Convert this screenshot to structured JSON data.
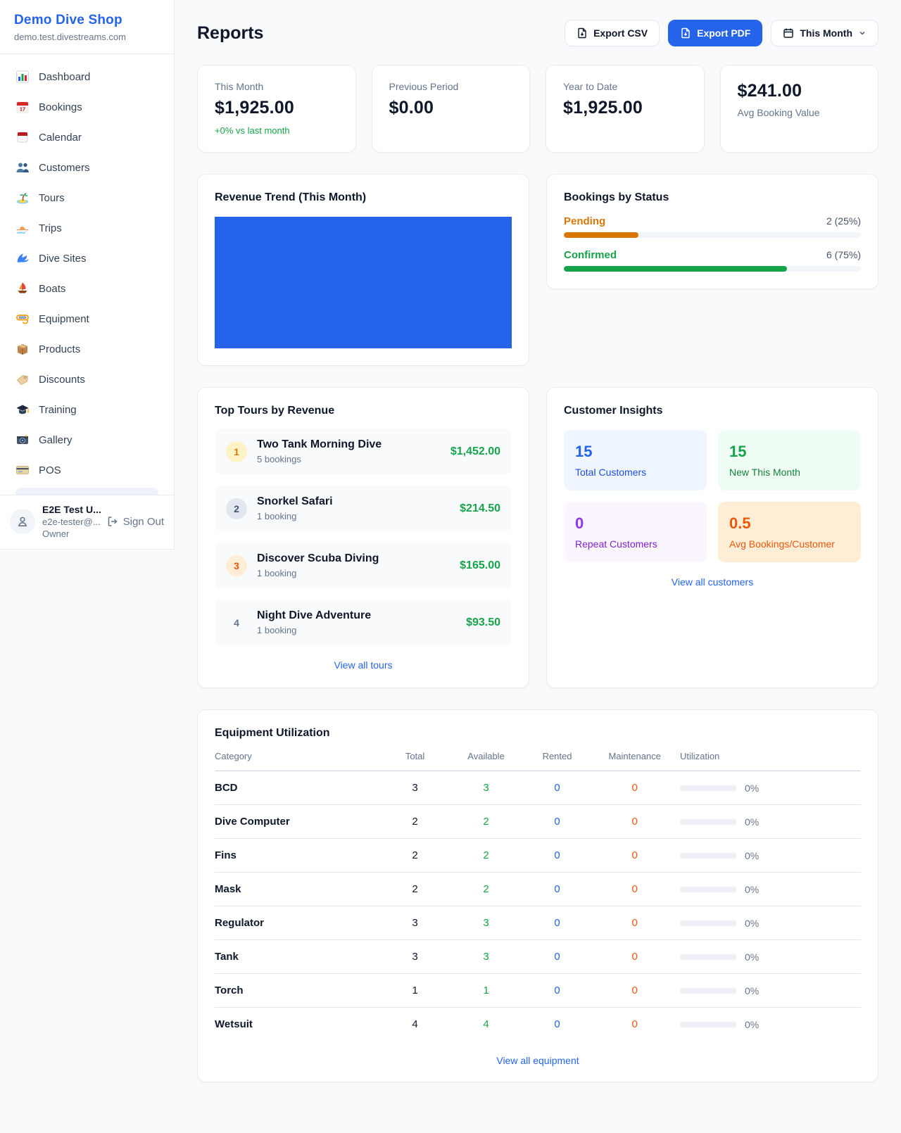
{
  "brand": {
    "name": "Demo Dive Shop",
    "domain": "demo.test.divestreams.com"
  },
  "nav": {
    "items": [
      {
        "label": "Dashboard"
      },
      {
        "label": "Bookings"
      },
      {
        "label": "Calendar"
      },
      {
        "label": "Customers"
      },
      {
        "label": "Tours"
      },
      {
        "label": "Trips"
      },
      {
        "label": "Dive Sites"
      },
      {
        "label": "Boats"
      },
      {
        "label": "Equipment"
      },
      {
        "label": "Products"
      },
      {
        "label": "Discounts"
      },
      {
        "label": "Training"
      },
      {
        "label": "Gallery"
      },
      {
        "label": "POS"
      }
    ]
  },
  "user": {
    "name": "E2E Test U...",
    "email": "e2e-tester@...",
    "role": "Owner",
    "sign_out": "Sign Out"
  },
  "header": {
    "title": "Reports",
    "export_csv": "Export CSV",
    "export_pdf": "Export PDF",
    "period": "This Month"
  },
  "stats": {
    "cards": [
      {
        "label": "This Month",
        "value": "$1,925.00",
        "delta": "+0% vs last month"
      },
      {
        "label": "Previous Period",
        "value": "$0.00"
      },
      {
        "label": "Year to Date",
        "value": "$1,925.00"
      },
      {
        "label": "Avg Booking Value",
        "value": "$241.00"
      }
    ]
  },
  "revenue_trend": {
    "title": "Revenue Trend (This Month)"
  },
  "bookings_status": {
    "title": "Bookings by Status",
    "rows": [
      {
        "label": "Pending",
        "value": "2 (25%)",
        "pct": 25
      },
      {
        "label": "Confirmed",
        "value": "6 (75%)",
        "pct": 75
      }
    ]
  },
  "chart_data": [
    {
      "type": "bar",
      "title": "Revenue Trend (This Month)",
      "categories": [
        "This Month"
      ],
      "values": [
        1925.0
      ],
      "color": "#2563eb",
      "note": "single solid blue bar filling the entire plot area, no axes or labels visible"
    },
    {
      "type": "bar",
      "title": "Bookings by Status",
      "categories": [
        "Pending",
        "Confirmed"
      ],
      "values": [
        2,
        6
      ],
      "percents": [
        25,
        75
      ],
      "colors": [
        "#d97706",
        "#16a34a"
      ],
      "layout": "horizontal progress bars"
    }
  ],
  "top_tours": {
    "title": "Top Tours by Revenue",
    "rows": [
      {
        "rank": "1",
        "name": "Two Tank Morning Dive",
        "bookings": "5 bookings",
        "amount": "$1,452.00"
      },
      {
        "rank": "2",
        "name": "Snorkel Safari",
        "bookings": "1 booking",
        "amount": "$214.50"
      },
      {
        "rank": "3",
        "name": "Discover Scuba Diving",
        "bookings": "1 booking",
        "amount": "$165.00"
      },
      {
        "rank": "4",
        "name": "Night Dive Adventure",
        "bookings": "1 booking",
        "amount": "$93.50"
      }
    ],
    "link": "View all tours"
  },
  "customer_insights": {
    "title": "Customer Insights",
    "tiles": [
      {
        "value": "15",
        "label": "Total Customers"
      },
      {
        "value": "15",
        "label": "New This Month"
      },
      {
        "value": "0",
        "label": "Repeat Customers"
      },
      {
        "value": "0.5",
        "label": "Avg Bookings/Customer"
      }
    ],
    "link": "View all customers"
  },
  "equipment": {
    "title": "Equipment Utilization",
    "columns": [
      "Category",
      "Total",
      "Available",
      "Rented",
      "Maintenance",
      "Utilization"
    ],
    "rows": [
      {
        "category": "BCD",
        "total": "3",
        "available": "3",
        "rented": "0",
        "maintenance": "0",
        "utilization": "0%",
        "pct": 0
      },
      {
        "category": "Dive Computer",
        "total": "2",
        "available": "2",
        "rented": "0",
        "maintenance": "0",
        "utilization": "0%",
        "pct": 0
      },
      {
        "category": "Fins",
        "total": "2",
        "available": "2",
        "rented": "0",
        "maintenance": "0",
        "utilization": "0%",
        "pct": 0
      },
      {
        "category": "Mask",
        "total": "2",
        "available": "2",
        "rented": "0",
        "maintenance": "0",
        "utilization": "0%",
        "pct": 0
      },
      {
        "category": "Regulator",
        "total": "3",
        "available": "3",
        "rented": "0",
        "maintenance": "0",
        "utilization": "0%",
        "pct": 0
      },
      {
        "category": "Tank",
        "total": "3",
        "available": "3",
        "rented": "0",
        "maintenance": "0",
        "utilization": "0%",
        "pct": 0
      },
      {
        "category": "Torch",
        "total": "1",
        "available": "1",
        "rented": "0",
        "maintenance": "0",
        "utilization": "0%",
        "pct": 0
      },
      {
        "category": "Wetsuit",
        "total": "4",
        "available": "4",
        "rented": "0",
        "maintenance": "0",
        "utilization": "0%",
        "pct": 0
      }
    ],
    "link": "View all equipment"
  },
  "colors": {
    "accent": "#2563eb",
    "green": "#16a34a",
    "amber": "#d97706",
    "orange": "#ea580c",
    "purple": "#9333ea"
  }
}
